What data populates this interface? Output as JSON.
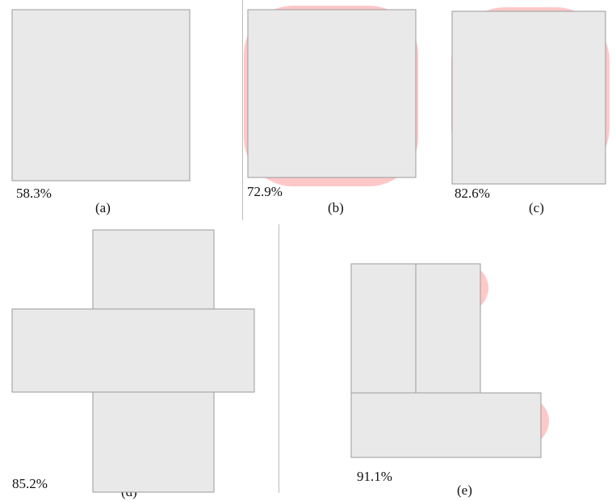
{
  "panels": [
    {
      "id": "a",
      "caption": "(a)",
      "percent": "58.3%",
      "shape": "loop"
    },
    {
      "id": "b",
      "caption": "(b)",
      "percent": "72.9%",
      "shape": "loop"
    },
    {
      "id": "c",
      "caption": "(c)",
      "percent": "82.6%",
      "shape": "loop"
    },
    {
      "id": "d",
      "caption": "(d)",
      "percent": "85.2%",
      "shape": "cross"
    },
    {
      "id": "e",
      "caption": "(e)",
      "percent": "91.1%",
      "shape": "c-shape"
    }
  ],
  "colors": {
    "floor": "#e9e9e9",
    "coverage": "#ff3b3b",
    "track": "#7d7d72",
    "trackLine": "#d40000",
    "sensors": "#1f8a1f",
    "endZone": "#4fae7d"
  }
}
